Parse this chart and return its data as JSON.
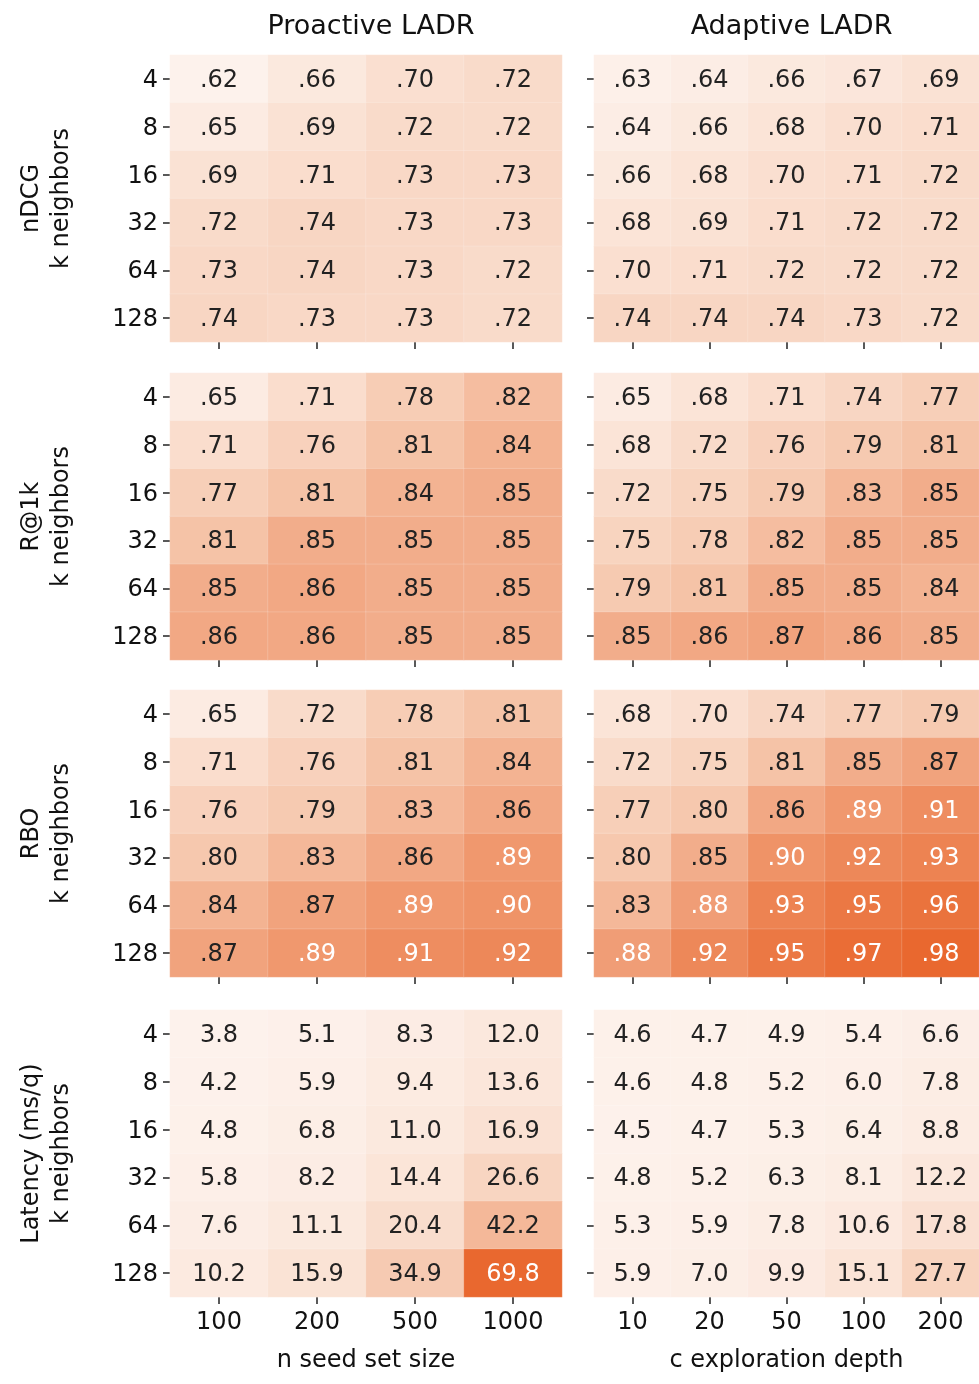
{
  "chart_data": [
    {
      "type": "heatmap",
      "title": "Proactive LADR",
      "ylabel": "nDCG\nk neighbors",
      "tick_labels": "y",
      "categories": [
        "100",
        "200",
        "500",
        "1000"
      ],
      "y_categories": [
        "4",
        "8",
        "16",
        "32",
        "64",
        "128"
      ],
      "cells": [
        [
          0.62,
          0.66,
          0.7,
          0.72
        ],
        [
          0.65,
          0.69,
          0.72,
          0.72
        ],
        [
          0.69,
          0.71,
          0.73,
          0.73
        ],
        [
          0.72,
          0.74,
          0.73,
          0.73
        ],
        [
          0.73,
          0.74,
          0.73,
          0.72
        ],
        [
          0.74,
          0.73,
          0.73,
          0.72
        ]
      ],
      "cell_labels": [
        [
          ".62",
          ".66",
          ".70",
          ".72"
        ],
        [
          ".65",
          ".69",
          ".72",
          ".72"
        ],
        [
          ".69",
          ".71",
          ".73",
          ".73"
        ],
        [
          ".72",
          ".74",
          ".73",
          ".73"
        ],
        [
          ".73",
          ".74",
          ".73",
          ".72"
        ],
        [
          ".74",
          ".73",
          ".73",
          ".72"
        ]
      ]
    },
    {
      "type": "heatmap",
      "title": "Adaptive LADR",
      "tick_labels": false,
      "categories": [
        "10",
        "20",
        "50",
        "100",
        "200"
      ],
      "y_categories": [
        "4",
        "8",
        "16",
        "32",
        "64",
        "128"
      ],
      "cells": [
        [
          0.63,
          0.64,
          0.66,
          0.67,
          0.69
        ],
        [
          0.64,
          0.66,
          0.68,
          0.7,
          0.71
        ],
        [
          0.66,
          0.68,
          0.7,
          0.71,
          0.72
        ],
        [
          0.68,
          0.69,
          0.71,
          0.72,
          0.72
        ],
        [
          0.7,
          0.71,
          0.72,
          0.72,
          0.72
        ],
        [
          0.74,
          0.74,
          0.74,
          0.73,
          0.72
        ]
      ],
      "cell_labels": [
        [
          ".63",
          ".64",
          ".66",
          ".67",
          ".69"
        ],
        [
          ".64",
          ".66",
          ".68",
          ".70",
          ".71"
        ],
        [
          ".66",
          ".68",
          ".70",
          ".71",
          ".72"
        ],
        [
          ".68",
          ".69",
          ".71",
          ".72",
          ".72"
        ],
        [
          ".70",
          ".71",
          ".72",
          ".72",
          ".72"
        ],
        [
          ".74",
          ".74",
          ".74",
          ".73",
          ".72"
        ]
      ]
    },
    {
      "type": "heatmap",
      "ylabel": "R@1k\nk neighbors",
      "tick_labels": "y",
      "categories": [
        "100",
        "200",
        "500",
        "1000"
      ],
      "y_categories": [
        "4",
        "8",
        "16",
        "32",
        "64",
        "128"
      ],
      "cells": [
        [
          0.65,
          0.71,
          0.78,
          0.82
        ],
        [
          0.71,
          0.76,
          0.81,
          0.84
        ],
        [
          0.77,
          0.81,
          0.84,
          0.85
        ],
        [
          0.81,
          0.85,
          0.85,
          0.85
        ],
        [
          0.85,
          0.86,
          0.85,
          0.85
        ],
        [
          0.86,
          0.86,
          0.85,
          0.85
        ]
      ],
      "cell_labels": [
        [
          ".65",
          ".71",
          ".78",
          ".82"
        ],
        [
          ".71",
          ".76",
          ".81",
          ".84"
        ],
        [
          ".77",
          ".81",
          ".84",
          ".85"
        ],
        [
          ".81",
          ".85",
          ".85",
          ".85"
        ],
        [
          ".85",
          ".86",
          ".85",
          ".85"
        ],
        [
          ".86",
          ".86",
          ".85",
          ".85"
        ]
      ]
    },
    {
      "type": "heatmap",
      "tick_labels": false,
      "categories": [
        "10",
        "20",
        "50",
        "100",
        "200"
      ],
      "y_categories": [
        "4",
        "8",
        "16",
        "32",
        "64",
        "128"
      ],
      "cells": [
        [
          0.65,
          0.68,
          0.71,
          0.74,
          0.77
        ],
        [
          0.68,
          0.72,
          0.76,
          0.79,
          0.81
        ],
        [
          0.72,
          0.75,
          0.79,
          0.83,
          0.85
        ],
        [
          0.75,
          0.78,
          0.82,
          0.85,
          0.85
        ],
        [
          0.79,
          0.81,
          0.85,
          0.85,
          0.84
        ],
        [
          0.85,
          0.86,
          0.87,
          0.86,
          0.85
        ]
      ],
      "cell_labels": [
        [
          ".65",
          ".68",
          ".71",
          ".74",
          ".77"
        ],
        [
          ".68",
          ".72",
          ".76",
          ".79",
          ".81"
        ],
        [
          ".72",
          ".75",
          ".79",
          ".83",
          ".85"
        ],
        [
          ".75",
          ".78",
          ".82",
          ".85",
          ".85"
        ],
        [
          ".79",
          ".81",
          ".85",
          ".85",
          ".84"
        ],
        [
          ".85",
          ".86",
          ".87",
          ".86",
          ".85"
        ]
      ]
    },
    {
      "type": "heatmap",
      "ylabel": "RBO\nk neighbors",
      "tick_labels": "y",
      "categories": [
        "100",
        "200",
        "500",
        "1000"
      ],
      "y_categories": [
        "4",
        "8",
        "16",
        "32",
        "64",
        "128"
      ],
      "cells": [
        [
          0.65,
          0.72,
          0.78,
          0.81
        ],
        [
          0.71,
          0.76,
          0.81,
          0.84
        ],
        [
          0.76,
          0.79,
          0.83,
          0.86
        ],
        [
          0.8,
          0.83,
          0.86,
          0.89
        ],
        [
          0.84,
          0.87,
          0.89,
          0.9
        ],
        [
          0.87,
          0.89,
          0.91,
          0.92
        ]
      ],
      "cell_labels": [
        [
          ".65",
          ".72",
          ".78",
          ".81"
        ],
        [
          ".71",
          ".76",
          ".81",
          ".84"
        ],
        [
          ".76",
          ".79",
          ".83",
          ".86"
        ],
        [
          ".80",
          ".83",
          ".86",
          ".89"
        ],
        [
          ".84",
          ".87",
          ".89",
          ".90"
        ],
        [
          ".87",
          ".89",
          ".91",
          ".92"
        ]
      ]
    },
    {
      "type": "heatmap",
      "tick_labels": false,
      "categories": [
        "10",
        "20",
        "50",
        "100",
        "200"
      ],
      "y_categories": [
        "4",
        "8",
        "16",
        "32",
        "64",
        "128"
      ],
      "cells": [
        [
          0.68,
          0.7,
          0.74,
          0.77,
          0.79
        ],
        [
          0.72,
          0.75,
          0.81,
          0.85,
          0.87
        ],
        [
          0.77,
          0.8,
          0.86,
          0.89,
          0.91
        ],
        [
          0.8,
          0.85,
          0.9,
          0.92,
          0.93
        ],
        [
          0.83,
          0.88,
          0.93,
          0.95,
          0.96
        ],
        [
          0.88,
          0.92,
          0.95,
          0.97,
          0.98
        ]
      ],
      "cell_labels": [
        [
          ".68",
          ".70",
          ".74",
          ".77",
          ".79"
        ],
        [
          ".72",
          ".75",
          ".81",
          ".85",
          ".87"
        ],
        [
          ".77",
          ".80",
          ".86",
          ".89",
          ".91"
        ],
        [
          ".80",
          ".85",
          ".90",
          ".92",
          ".93"
        ],
        [
          ".83",
          ".88",
          ".93",
          ".95",
          ".96"
        ],
        [
          ".88",
          ".92",
          ".95",
          ".97",
          ".98"
        ]
      ]
    },
    {
      "type": "heatmap",
      "ylabel": "Latency (ms/q)\nk neighbors",
      "xlabel": "n seed set size",
      "categories": [
        "100",
        "200",
        "500",
        "1000"
      ],
      "y_categories": [
        "4",
        "8",
        "16",
        "32",
        "64",
        "128"
      ],
      "cells": [
        [
          3.8,
          5.1,
          8.3,
          12.0
        ],
        [
          4.2,
          5.9,
          9.4,
          13.6
        ],
        [
          4.8,
          6.8,
          11.0,
          16.9
        ],
        [
          5.8,
          8.2,
          14.4,
          26.6
        ],
        [
          7.6,
          11.1,
          20.4,
          42.2
        ],
        [
          10.2,
          15.9,
          34.9,
          69.8
        ]
      ],
      "cell_labels": [
        [
          "3.8",
          "5.1",
          "8.3",
          "12.0"
        ],
        [
          "4.2",
          "5.9",
          "9.4",
          "13.6"
        ],
        [
          "4.8",
          "6.8",
          "11.0",
          "16.9"
        ],
        [
          "5.8",
          "8.2",
          "14.4",
          "26.6"
        ],
        [
          "7.6",
          "11.1",
          "20.4",
          "42.2"
        ],
        [
          "10.2",
          "15.9",
          "34.9",
          "69.8"
        ]
      ]
    },
    {
      "type": "heatmap",
      "xlabel": "c exploration depth",
      "tick_labels": "x",
      "categories": [
        "10",
        "20",
        "50",
        "100",
        "200"
      ],
      "y_categories": [
        "4",
        "8",
        "16",
        "32",
        "64",
        "128"
      ],
      "cells": [
        [
          4.6,
          4.7,
          4.9,
          5.4,
          6.6
        ],
        [
          4.6,
          4.8,
          5.2,
          6.0,
          7.8
        ],
        [
          4.5,
          4.7,
          5.3,
          6.4,
          8.8
        ],
        [
          4.8,
          5.2,
          6.3,
          8.1,
          12.2
        ],
        [
          5.3,
          5.9,
          7.8,
          10.6,
          17.8
        ],
        [
          5.9,
          7.0,
          9.9,
          15.1,
          27.7
        ]
      ],
      "cell_labels": [
        [
          "4.6",
          "4.7",
          "4.9",
          "5.4",
          "6.6"
        ],
        [
          "4.6",
          "4.8",
          "5.2",
          "6.0",
          "7.8"
        ],
        [
          "4.5",
          "4.7",
          "5.3",
          "6.4",
          "8.8"
        ],
        [
          "4.8",
          "5.2",
          "6.3",
          "8.1",
          "12.2"
        ],
        [
          "5.3",
          "5.9",
          "7.8",
          "10.6",
          "17.8"
        ],
        [
          "5.9",
          "7.0",
          "9.9",
          "15.1",
          "27.7"
        ]
      ]
    }
  ]
}
